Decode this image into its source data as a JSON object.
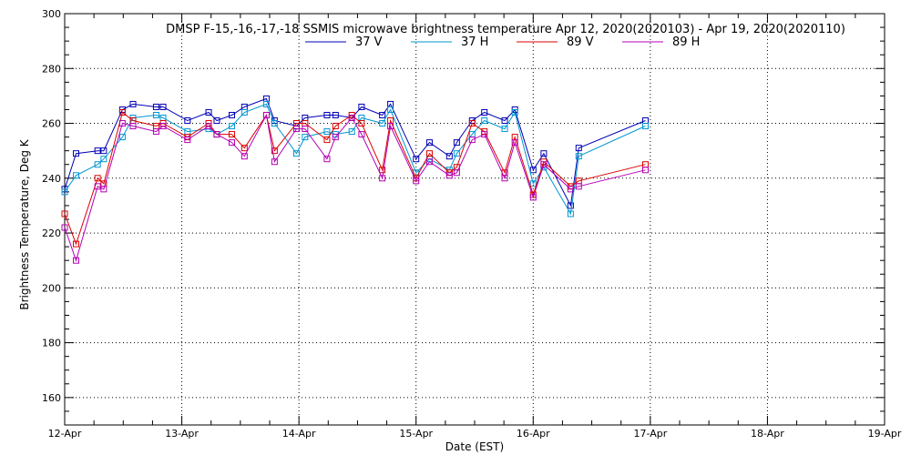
{
  "chart_data": {
    "type": "line",
    "title": "DMSP F-15,-16,-17,-18 SSMIS microwave brightness temperature Apr 12, 2020(2020103) - Apr 19, 2020(2020110)",
    "xlabel": "Date (EST)",
    "ylabel": "Brightness Temperature, Deg K",
    "xlim": [
      "2020-04-12T00:00",
      "2020-04-19T00:00"
    ],
    "ylim": [
      150,
      300
    ],
    "x_ticks": [
      "12-Apr",
      "13-Apr",
      "14-Apr",
      "15-Apr",
      "16-Apr",
      "17-Apr",
      "18-Apr",
      "19-Apr"
    ],
    "y_ticks": [
      160,
      180,
      200,
      220,
      240,
      260,
      280,
      300
    ],
    "grid": true,
    "legend_placement": "top-center",
    "series": [
      {
        "name": "37 V",
        "color": "#0000b4",
        "points": [
          [
            "2020-04-12T00:00",
            236
          ],
          [
            "2020-04-12T02:20",
            249
          ],
          [
            "2020-04-12T06:45",
            250
          ],
          [
            "2020-04-12T08:00",
            250
          ],
          [
            "2020-04-12T11:50",
            265
          ],
          [
            "2020-04-12T14:00",
            267
          ],
          [
            "2020-04-12T18:45",
            266
          ],
          [
            "2020-04-12T20:10",
            266
          ],
          [
            "2020-04-13T01:10",
            261
          ],
          [
            "2020-04-13T05:30",
            264
          ],
          [
            "2020-04-13T07:10",
            261
          ],
          [
            "2020-04-13T10:15",
            263
          ],
          [
            "2020-04-13T12:50",
            266
          ],
          [
            "2020-04-13T17:20",
            269
          ],
          [
            "2020-04-13T19:00",
            261
          ],
          [
            "2020-04-13T23:30",
            259
          ],
          [
            "2020-04-14T01:15",
            262
          ],
          [
            "2020-04-14T05:45",
            263
          ],
          [
            "2020-04-14T07:30",
            263
          ],
          [
            "2020-04-14T10:50",
            262
          ],
          [
            "2020-04-14T12:50",
            266
          ],
          [
            "2020-04-14T17:05",
            263
          ],
          [
            "2020-04-14T18:45",
            267
          ],
          [
            "2020-04-15T00:00",
            247
          ],
          [
            "2020-04-15T02:45",
            253
          ],
          [
            "2020-04-15T06:50",
            248
          ],
          [
            "2020-04-15T08:20",
            253
          ],
          [
            "2020-04-15T11:30",
            261
          ],
          [
            "2020-04-15T14:00",
            264
          ],
          [
            "2020-04-15T18:10",
            261
          ],
          [
            "2020-04-15T20:15",
            265
          ],
          [
            "2020-04-16T00:00",
            243
          ],
          [
            "2020-04-16T02:10",
            249
          ],
          [
            "2020-04-16T07:40",
            230
          ],
          [
            "2020-04-16T09:20",
            251
          ],
          [
            "2020-04-16T23:00",
            261
          ]
        ]
      },
      {
        "name": "37 H",
        "color": "#0096d2",
        "points": [
          [
            "2020-04-12T00:00",
            235
          ],
          [
            "2020-04-12T02:20",
            241
          ],
          [
            "2020-04-12T06:45",
            245
          ],
          [
            "2020-04-12T08:00",
            247
          ],
          [
            "2020-04-12T11:50",
            255
          ],
          [
            "2020-04-12T14:00",
            262
          ],
          [
            "2020-04-12T18:45",
            263
          ],
          [
            "2020-04-12T20:10",
            262
          ],
          [
            "2020-04-13T01:10",
            257
          ],
          [
            "2020-04-13T05:30",
            258
          ],
          [
            "2020-04-13T07:10",
            256
          ],
          [
            "2020-04-13T10:15",
            259
          ],
          [
            "2020-04-13T12:50",
            264
          ],
          [
            "2020-04-13T17:20",
            267
          ],
          [
            "2020-04-13T19:00",
            260
          ],
          [
            "2020-04-13T23:30",
            249
          ],
          [
            "2020-04-14T01:15",
            255
          ],
          [
            "2020-04-14T05:45",
            257
          ],
          [
            "2020-04-14T07:30",
            256
          ],
          [
            "2020-04-14T10:50",
            257
          ],
          [
            "2020-04-14T12:50",
            262
          ],
          [
            "2020-04-14T17:05",
            260
          ],
          [
            "2020-04-14T18:45",
            265
          ],
          [
            "2020-04-15T00:00",
            242
          ],
          [
            "2020-04-15T02:45",
            247
          ],
          [
            "2020-04-15T06:50",
            243
          ],
          [
            "2020-04-15T08:20",
            249
          ],
          [
            "2020-04-15T11:30",
            256
          ],
          [
            "2020-04-15T14:00",
            261
          ],
          [
            "2020-04-15T18:10",
            258
          ],
          [
            "2020-04-15T20:15",
            264
          ],
          [
            "2020-04-16T00:00",
            238
          ],
          [
            "2020-04-16T02:10",
            244
          ],
          [
            "2020-04-16T07:40",
            227
          ],
          [
            "2020-04-16T09:20",
            248
          ],
          [
            "2020-04-16T23:00",
            259
          ]
        ]
      },
      {
        "name": "89 V",
        "color": "#dc0000",
        "points": [
          [
            "2020-04-12T00:00",
            227
          ],
          [
            "2020-04-12T02:20",
            216
          ],
          [
            "2020-04-12T06:45",
            240
          ],
          [
            "2020-04-12T08:00",
            238
          ],
          [
            "2020-04-12T11:50",
            264
          ],
          [
            "2020-04-12T14:00",
            261
          ],
          [
            "2020-04-12T18:45",
            259
          ],
          [
            "2020-04-12T20:10",
            260
          ],
          [
            "2020-04-13T01:10",
            255
          ],
          [
            "2020-04-13T05:30",
            260
          ],
          [
            "2020-04-13T07:10",
            256
          ],
          [
            "2020-04-13T10:15",
            256
          ],
          [
            "2020-04-13T12:50",
            251
          ],
          [
            "2020-04-13T17:20",
            263
          ],
          [
            "2020-04-13T19:00",
            250
          ],
          [
            "2020-04-13T23:30",
            260
          ],
          [
            "2020-04-14T01:15",
            260
          ],
          [
            "2020-04-14T05:45",
            254
          ],
          [
            "2020-04-14T07:30",
            259
          ],
          [
            "2020-04-14T10:50",
            263
          ],
          [
            "2020-04-14T12:50",
            260
          ],
          [
            "2020-04-14T17:05",
            243
          ],
          [
            "2020-04-14T18:45",
            261
          ],
          [
            "2020-04-15T00:00",
            240
          ],
          [
            "2020-04-15T02:45",
            249
          ],
          [
            "2020-04-15T06:50",
            242
          ],
          [
            "2020-04-15T08:20",
            244
          ],
          [
            "2020-04-15T11:30",
            260
          ],
          [
            "2020-04-15T14:00",
            257
          ],
          [
            "2020-04-15T18:10",
            242
          ],
          [
            "2020-04-15T20:15",
            255
          ],
          [
            "2020-04-16T00:00",
            234
          ],
          [
            "2020-04-16T02:10",
            246
          ],
          [
            "2020-04-16T07:40",
            237
          ],
          [
            "2020-04-16T09:20",
            239
          ],
          [
            "2020-04-16T23:00",
            245
          ]
        ]
      },
      {
        "name": "89 H",
        "color": "#b400b4",
        "points": [
          [
            "2020-04-12T00:00",
            222
          ],
          [
            "2020-04-12T02:20",
            210
          ],
          [
            "2020-04-12T06:45",
            237
          ],
          [
            "2020-04-12T08:00",
            236
          ],
          [
            "2020-04-12T11:50",
            260
          ],
          [
            "2020-04-12T14:00",
            259
          ],
          [
            "2020-04-12T18:45",
            257
          ],
          [
            "2020-04-12T20:10",
            259
          ],
          [
            "2020-04-13T01:10",
            254
          ],
          [
            "2020-04-13T05:30",
            259
          ],
          [
            "2020-04-13T07:10",
            256
          ],
          [
            "2020-04-13T10:15",
            253
          ],
          [
            "2020-04-13T12:50",
            248
          ],
          [
            "2020-04-13T17:20",
            263
          ],
          [
            "2020-04-13T19:00",
            246
          ],
          [
            "2020-04-13T23:30",
            258
          ],
          [
            "2020-04-14T01:15",
            258
          ],
          [
            "2020-04-14T05:45",
            247
          ],
          [
            "2020-04-14T07:30",
            255
          ],
          [
            "2020-04-14T10:50",
            262
          ],
          [
            "2020-04-14T12:50",
            256
          ],
          [
            "2020-04-14T17:05",
            240
          ],
          [
            "2020-04-14T18:45",
            259
          ],
          [
            "2020-04-15T00:00",
            239
          ],
          [
            "2020-04-15T02:45",
            246
          ],
          [
            "2020-04-15T06:50",
            241
          ],
          [
            "2020-04-15T08:20",
            242
          ],
          [
            "2020-04-15T11:30",
            254
          ],
          [
            "2020-04-15T14:00",
            256
          ],
          [
            "2020-04-15T18:10",
            240
          ],
          [
            "2020-04-15T20:15",
            253
          ],
          [
            "2020-04-16T00:00",
            233
          ],
          [
            "2020-04-16T02:10",
            245
          ],
          [
            "2020-04-16T07:40",
            236
          ],
          [
            "2020-04-16T09:20",
            237
          ],
          [
            "2020-04-16T23:00",
            243
          ]
        ]
      }
    ]
  }
}
